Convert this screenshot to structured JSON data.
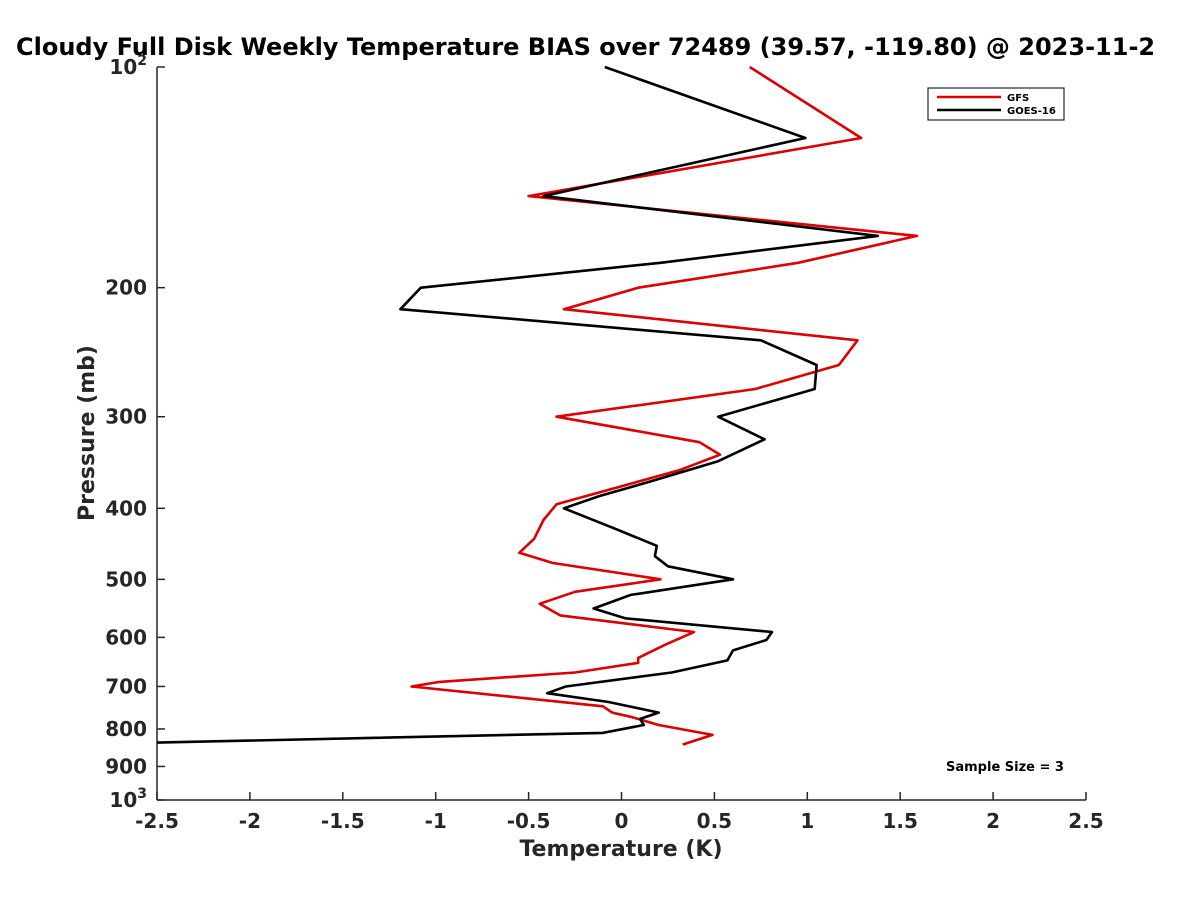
{
  "chart_data": {
    "type": "line",
    "title": "Cloudy Full Disk Weekly Temperature BIAS over 72489 (39.57, -119.80) @ 2023-11-2",
    "xlabel": "Temperature (K)",
    "ylabel": "Pressure (mb)",
    "xlim": [
      -2.5,
      2.5
    ],
    "ylim": [
      100,
      1000
    ],
    "yscale": "log",
    "y_reversed": true,
    "x_ticks": [
      "-2.5",
      "-2",
      "-1.5",
      "-1",
      "-0.5",
      "0",
      "0.5",
      "1",
      "1.5",
      "2",
      "2.5"
    ],
    "y_ticks": [
      {
        "value": 100,
        "base": "10",
        "exp": "2"
      },
      {
        "value": 200,
        "label": "200"
      },
      {
        "value": 300,
        "label": "300"
      },
      {
        "value": 400,
        "label": "400"
      },
      {
        "value": 500,
        "label": "500"
      },
      {
        "value": 600,
        "label": "600"
      },
      {
        "value": 700,
        "label": "700"
      },
      {
        "value": 800,
        "label": "800"
      },
      {
        "value": 900,
        "label": "900"
      },
      {
        "value": 1000,
        "base": "10",
        "exp": "3"
      }
    ],
    "legend_position": "top-right",
    "annotation": "Sample Size = 3",
    "series": [
      {
        "name": "GFS",
        "color": "#dd0000",
        "points": [
          [
            0.69,
            100
          ],
          [
            1.29,
            125
          ],
          [
            -0.5,
            150
          ],
          [
            1.59,
            170
          ],
          [
            0.95,
            185
          ],
          [
            0.09,
            200
          ],
          [
            -0.31,
            214
          ],
          [
            1.27,
            236
          ],
          [
            1.17,
            255
          ],
          [
            0.72,
            275
          ],
          [
            -0.35,
            300
          ],
          [
            0.42,
            325
          ],
          [
            0.53,
            338
          ],
          [
            0.31,
            355
          ],
          [
            -0.35,
            395
          ],
          [
            -0.42,
            415
          ],
          [
            -0.47,
            440
          ],
          [
            -0.55,
            460
          ],
          [
            -0.37,
            475
          ],
          [
            0.21,
            500
          ],
          [
            -0.25,
            520
          ],
          [
            -0.44,
            540
          ],
          [
            -0.33,
            560
          ],
          [
            0.39,
            590
          ],
          [
            0.23,
            615
          ],
          [
            0.09,
            640
          ],
          [
            0.09,
            650
          ],
          [
            -0.25,
            670
          ],
          [
            -0.98,
            690
          ],
          [
            -1.13,
            700
          ],
          [
            -0.1,
            745
          ],
          [
            -0.05,
            760
          ],
          [
            0.05,
            770
          ],
          [
            0.2,
            790
          ],
          [
            0.49,
            815
          ],
          [
            0.33,
            840
          ]
        ]
      },
      {
        "name": "GOES-16",
        "color": "#000000",
        "points": [
          [
            -0.09,
            100
          ],
          [
            0.99,
            125
          ],
          [
            -0.42,
            150
          ],
          [
            1.38,
            170
          ],
          [
            0.21,
            185
          ],
          [
            -1.08,
            200
          ],
          [
            -1.19,
            214
          ],
          [
            0.75,
            236
          ],
          [
            1.05,
            255
          ],
          [
            1.04,
            275
          ],
          [
            0.52,
            300
          ],
          [
            0.77,
            322
          ],
          [
            0.52,
            345
          ],
          [
            0.15,
            368
          ],
          [
            -0.12,
            385
          ],
          [
            -0.31,
            400
          ],
          [
            -0.05,
            425
          ],
          [
            0.19,
            450
          ],
          [
            0.18,
            465
          ],
          [
            0.25,
            480
          ],
          [
            0.6,
            500
          ],
          [
            0.05,
            525
          ],
          [
            -0.15,
            548
          ],
          [
            0.02,
            565
          ],
          [
            0.81,
            590
          ],
          [
            0.78,
            605
          ],
          [
            0.6,
            625
          ],
          [
            0.57,
            645
          ],
          [
            0.27,
            670
          ],
          [
            -0.3,
            700
          ],
          [
            -0.4,
            715
          ],
          [
            -0.07,
            735
          ],
          [
            0.2,
            760
          ],
          [
            0.1,
            775
          ],
          [
            0.12,
            790
          ],
          [
            -0.1,
            810
          ],
          [
            -2.5,
            835
          ]
        ]
      }
    ]
  }
}
